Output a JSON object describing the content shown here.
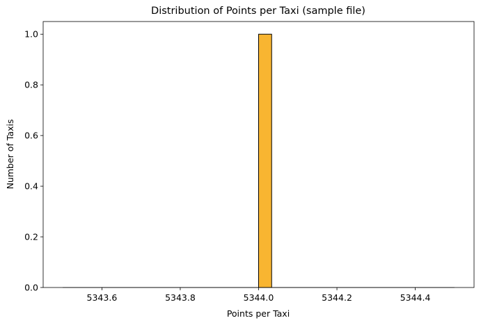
{
  "chart_data": {
    "type": "bar",
    "title": "Distribution of Points per Taxi (sample file)",
    "xlabel": "Points per Taxi",
    "ylabel": "Number of Taxis",
    "xlim": [
      5343.45,
      5344.55
    ],
    "ylim": [
      0,
      1.05
    ],
    "x_ticks": [
      5343.6,
      5343.8,
      5344.0,
      5344.2,
      5344.4
    ],
    "x_tick_labels": [
      "5343.6",
      "5343.8",
      "5344.0",
      "5344.2",
      "5344.4"
    ],
    "y_ticks": [
      0.0,
      0.2,
      0.4,
      0.6,
      0.8,
      1.0
    ],
    "y_tick_labels": [
      "0.0",
      "0.2",
      "0.4",
      "0.6",
      "0.8",
      "1.0"
    ],
    "bins": [
      {
        "x_start": 5344.0,
        "x_end": 5344.0333,
        "value": 1
      }
    ],
    "baseline_range": [
      5343.5,
      5344.5
    ],
    "bar_color": "#f8b531",
    "edge_color": "#000000",
    "grid": false,
    "legend": "none"
  }
}
